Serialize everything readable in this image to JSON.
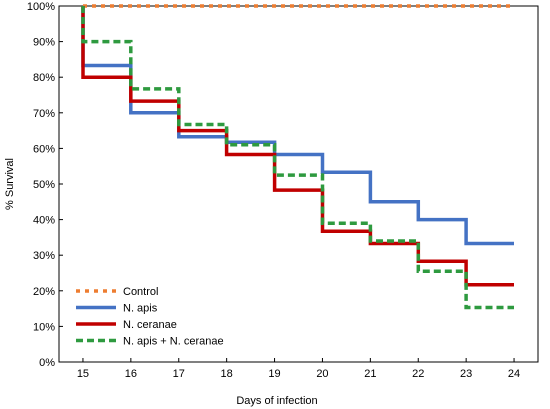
{
  "chart_data": {
    "type": "line",
    "step": true,
    "xlabel": "Days of infection",
    "ylabel": "% Survival",
    "x_ticks": [
      15,
      16,
      17,
      18,
      19,
      20,
      21,
      22,
      23,
      24
    ],
    "y_ticks": [
      "0%",
      "10%",
      "20%",
      "30%",
      "40%",
      "50%",
      "60%",
      "70%",
      "80%",
      "90%",
      "100%"
    ],
    "xlim": [
      14.5,
      24.5
    ],
    "ylim": [
      0,
      100
    ],
    "grid": false,
    "legend_position": "bottom-left",
    "series": [
      {
        "name": "Control",
        "color": "#ED7D31",
        "dash": "dotted",
        "points": [
          [
            15,
            100
          ],
          [
            24,
            100
          ]
        ]
      },
      {
        "name": "N. apis",
        "color": "#4472C4",
        "dash": "solid",
        "points": [
          [
            15,
            100
          ],
          [
            15,
            83.3
          ],
          [
            16,
            83.3
          ],
          [
            16,
            70
          ],
          [
            17,
            70
          ],
          [
            17,
            63.3
          ],
          [
            18,
            63.3
          ],
          [
            18,
            61.7
          ],
          [
            19,
            61.7
          ],
          [
            19,
            58.3
          ],
          [
            20,
            58.3
          ],
          [
            20,
            53.3
          ],
          [
            21,
            53.3
          ],
          [
            21,
            45
          ],
          [
            22,
            45
          ],
          [
            22,
            40
          ],
          [
            23,
            40
          ],
          [
            23,
            33.3
          ],
          [
            24,
            33.3
          ]
        ]
      },
      {
        "name": "N. ceranae",
        "color": "#C00000",
        "dash": "solid",
        "points": [
          [
            15,
            100
          ],
          [
            15,
            80
          ],
          [
            16,
            80
          ],
          [
            16,
            73.3
          ],
          [
            17,
            73.3
          ],
          [
            17,
            65
          ],
          [
            18,
            65
          ],
          [
            18,
            58.3
          ],
          [
            19,
            58.3
          ],
          [
            19,
            48.3
          ],
          [
            20,
            48.3
          ],
          [
            20,
            36.7
          ],
          [
            21,
            36.7
          ],
          [
            21,
            33.3
          ],
          [
            22,
            33.3
          ],
          [
            22,
            28.3
          ],
          [
            23,
            28.3
          ],
          [
            23,
            21.7
          ],
          [
            24,
            21.7
          ]
        ]
      },
      {
        "name": "N. apis + N. ceranae",
        "color": "#2E9A3F",
        "dash": "dashed",
        "points": [
          [
            15,
            100
          ],
          [
            15,
            90
          ],
          [
            16,
            90
          ],
          [
            16,
            76.7
          ],
          [
            17,
            76.7
          ],
          [
            17,
            66.7
          ],
          [
            18,
            66.7
          ],
          [
            18,
            61
          ],
          [
            19,
            61
          ],
          [
            19,
            52.5
          ],
          [
            20,
            52.5
          ],
          [
            20,
            39
          ],
          [
            21,
            39
          ],
          [
            21,
            34
          ],
          [
            22,
            34
          ],
          [
            22,
            25.5
          ],
          [
            23,
            25.5
          ],
          [
            23,
            15.3
          ],
          [
            24,
            15.3
          ]
        ]
      }
    ]
  }
}
